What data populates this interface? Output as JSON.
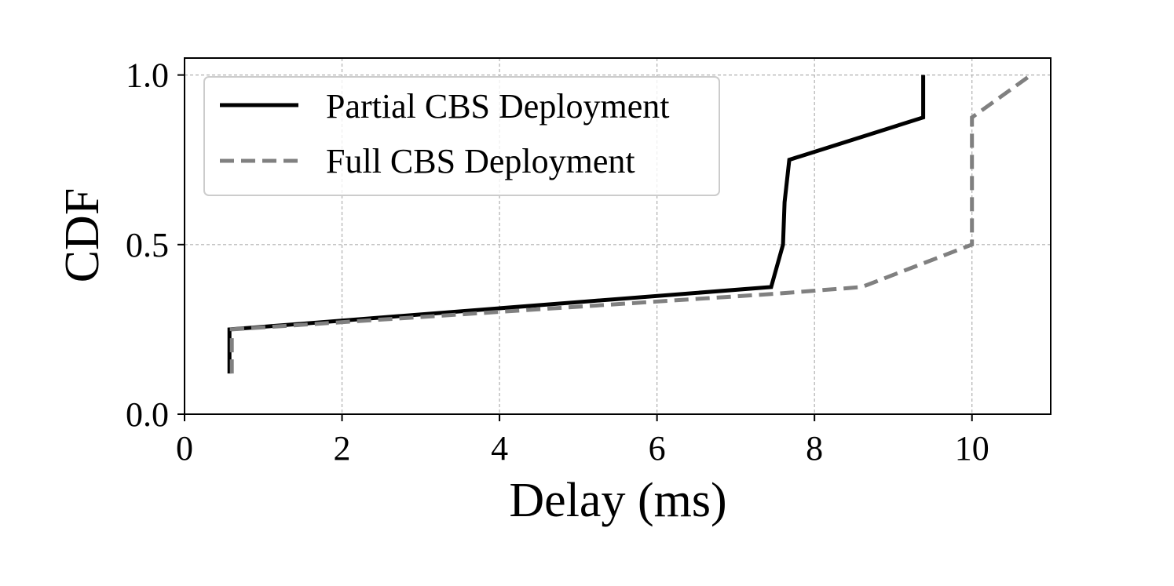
{
  "chart_data": {
    "type": "line",
    "xlabel": "Delay (ms)",
    "ylabel": "CDF",
    "xlim": [
      0,
      11
    ],
    "ylim": [
      0,
      1.05
    ],
    "x_ticks": [
      0,
      2,
      4,
      6,
      8,
      10
    ],
    "y_ticks": [
      0.0,
      0.5,
      1.0
    ],
    "x_tick_labels": [
      "0",
      "2",
      "4",
      "6",
      "8",
      "10"
    ],
    "y_tick_labels": [
      "0.0",
      "0.5",
      "1.0"
    ],
    "grid": true,
    "legend_position": "top-left",
    "series": [
      {
        "name": "Partial CBS Deployment",
        "color": "#000000",
        "style": "solid",
        "points": [
          [
            0.57,
            0.12
          ],
          [
            0.57,
            0.25
          ],
          [
            7.45,
            0.375
          ],
          [
            7.6,
            0.5
          ],
          [
            7.62,
            0.625
          ],
          [
            7.68,
            0.75
          ],
          [
            9.38,
            0.875
          ],
          [
            9.38,
            1.0
          ]
        ]
      },
      {
        "name": "Full CBS Deployment",
        "color": "#808080",
        "style": "dashed",
        "points": [
          [
            0.6,
            0.12
          ],
          [
            0.6,
            0.25
          ],
          [
            7.5,
            0.355
          ],
          [
            8.6,
            0.375
          ],
          [
            10.0,
            0.5
          ],
          [
            10.0,
            0.875
          ],
          [
            10.75,
            1.0
          ]
        ]
      }
    ]
  }
}
